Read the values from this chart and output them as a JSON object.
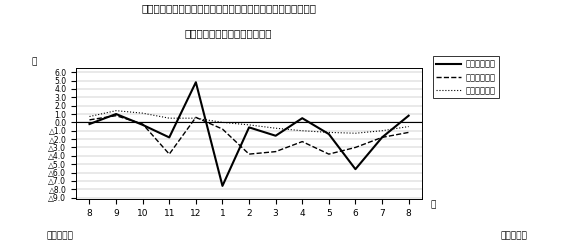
{
  "title_line1": "第４図　　賣金、労働時間、常用雇用指数対前年同月比の推移",
  "title_line2": "（規模５人以上　調査産業計）",
  "ylabel": "％",
  "xlabel_right": "月",
  "foot_left": "平成２０年",
  "foot_right": "平成２１年",
  "x_labels": [
    "8",
    "9",
    "10",
    "11",
    "12",
    "1",
    "2",
    "3",
    "4",
    "5",
    "6",
    "7",
    "8"
  ],
  "series_wage": [
    -0.2,
    1.0,
    -0.3,
    -1.8,
    4.8,
    -7.6,
    -0.6,
    -1.6,
    0.5,
    -1.4,
    -5.6,
    -1.8,
    0.8
  ],
  "series_hours": [
    0.3,
    0.8,
    -0.2,
    -3.8,
    0.6,
    -0.8,
    -3.8,
    -3.5,
    -2.3,
    -3.8,
    -3.0,
    -1.8,
    -1.2
  ],
  "series_employment": [
    0.7,
    1.4,
    1.1,
    0.5,
    0.5,
    0.0,
    -0.3,
    -0.7,
    -1.0,
    -1.2,
    -1.3,
    -1.0,
    -0.5
  ],
  "legend_labels": [
    "現金給与総額",
    "総実労働時間",
    "常用雇用指数"
  ],
  "ytick_vals": [
    6.0,
    5.0,
    4.0,
    3.0,
    2.0,
    1.0,
    0.0,
    -1.0,
    -2.0,
    -3.0,
    -4.0,
    -5.0,
    -6.0,
    -7.0,
    -8.0,
    -9.0
  ],
  "ytick_labels": [
    "6.0",
    "5.0",
    "4.0",
    "3.0",
    "2.0",
    "1.0",
    "0.0",
    "△1.0",
    "△2.0",
    "△3.0",
    "△4.0",
    "△5.0",
    "△6.0",
    "△7.0",
    "△8.0",
    "△9.0"
  ]
}
